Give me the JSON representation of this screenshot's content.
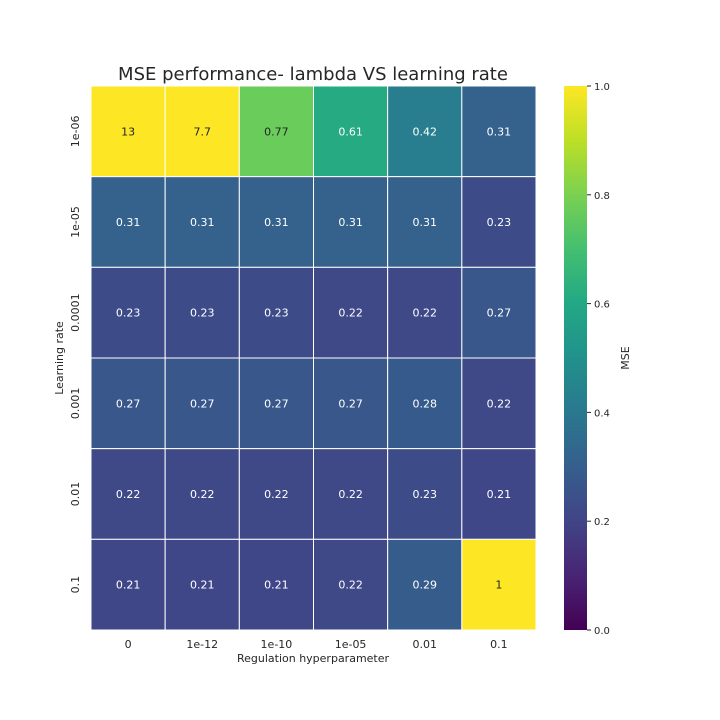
{
  "chart_data": {
    "type": "heatmap",
    "title": "MSE performance- lambda VS learning rate",
    "xlabel": "Regulation hyperparameter",
    "ylabel": "Learning rate",
    "x_categories": [
      "0",
      "1e-12",
      "1e-10",
      "1e-05",
      "0.01",
      "0.1"
    ],
    "y_categories": [
      "1e-06",
      "1e-05",
      "0.0001",
      "0.001",
      "0.01",
      "0.1"
    ],
    "values": [
      [
        13,
        7.7,
        0.77,
        0.61,
        0.42,
        0.31
      ],
      [
        0.31,
        0.31,
        0.31,
        0.31,
        0.31,
        0.23
      ],
      [
        0.23,
        0.23,
        0.23,
        0.22,
        0.22,
        0.27
      ],
      [
        0.27,
        0.27,
        0.27,
        0.27,
        0.28,
        0.22
      ],
      [
        0.22,
        0.22,
        0.22,
        0.22,
        0.23,
        0.21
      ],
      [
        0.21,
        0.21,
        0.21,
        0.22,
        0.29,
        1
      ]
    ],
    "annotations": [
      [
        "13",
        "7.7",
        "0.77",
        "0.61",
        "0.42",
        "0.31"
      ],
      [
        "0.31",
        "0.31",
        "0.31",
        "0.31",
        "0.31",
        "0.23"
      ],
      [
        "0.23",
        "0.23",
        "0.23",
        "0.22",
        "0.22",
        "0.27"
      ],
      [
        "0.27",
        "0.27",
        "0.27",
        "0.27",
        "0.28",
        "0.22"
      ],
      [
        "0.22",
        "0.22",
        "0.22",
        "0.22",
        "0.23",
        "0.21"
      ],
      [
        "0.21",
        "0.21",
        "0.21",
        "0.22",
        "0.29",
        "1"
      ]
    ],
    "colormap": "viridis",
    "vmin": 0,
    "vmax": 1,
    "colorbar": {
      "label": "MSE",
      "ticks": [
        "0.0",
        "0.2",
        "0.4",
        "0.6",
        "0.8",
        "1.0"
      ],
      "tick_values": [
        0,
        0.2,
        0.4,
        0.6,
        0.8,
        1.0
      ]
    },
    "cell_border_color": "#ffffff"
  }
}
